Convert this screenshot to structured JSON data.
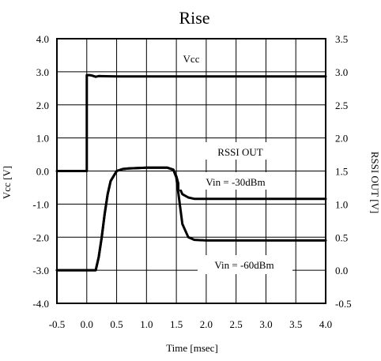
{
  "chart_data": {
    "type": "line",
    "title": "Rise",
    "xlabel": "Time [msec]",
    "ylabel_left": "Vcc [V]",
    "ylabel_right": "RSSI OUT [V]",
    "xlim": [
      -0.5,
      4.0
    ],
    "ylim_left": [
      -4.0,
      4.0
    ],
    "ylim_right": [
      -0.5,
      3.5
    ],
    "x_ticks": [
      "-0.5",
      "0.0",
      "0.5",
      "1.0",
      "1.5",
      "2.0",
      "2.5",
      "3.0",
      "3.5",
      "4.0"
    ],
    "y_ticks_left": [
      "4.0",
      "3.0",
      "2.0",
      "1.0",
      "0.0",
      "-1.0",
      "-2.0",
      "-3.0",
      "-4.0"
    ],
    "y_ticks_right": [
      "3.5",
      "3.0",
      "2.5",
      "2.0",
      "1.5",
      "1.0",
      "0.5",
      "0.0",
      "-0.5"
    ],
    "grid": true,
    "series": [
      {
        "name": "Vcc",
        "axis": "left",
        "x": [
          -0.5,
          0.0,
          0.0,
          0.05,
          0.1,
          0.15,
          0.2,
          0.5,
          1.0,
          2.0,
          3.0,
          4.0
        ],
        "values": [
          0.0,
          0.0,
          2.9,
          2.9,
          2.88,
          2.85,
          2.87,
          2.86,
          2.86,
          2.86,
          2.86,
          2.86
        ]
      },
      {
        "name": "RSSI OUT, Vin = -30dBm",
        "axis": "right",
        "x": [
          -0.5,
          0.15,
          0.2,
          0.25,
          0.3,
          0.35,
          0.4,
          0.5,
          0.6,
          0.7,
          1.0,
          1.35,
          1.45,
          1.5,
          1.55,
          1.6,
          1.7,
          1.8,
          2.0,
          2.5,
          3.0,
          4.0
        ],
        "values": [
          0.0,
          0.0,
          0.2,
          0.5,
          0.85,
          1.15,
          1.35,
          1.5,
          1.53,
          1.54,
          1.55,
          1.55,
          1.52,
          1.42,
          1.25,
          1.15,
          1.1,
          1.08,
          1.08,
          1.08,
          1.08,
          1.08
        ]
      },
      {
        "name": "RSSI OUT, Vin = -60dBm",
        "axis": "right",
        "x": [
          -0.5,
          0.15,
          0.2,
          0.25,
          0.3,
          0.35,
          0.4,
          0.5,
          0.6,
          0.7,
          1.0,
          1.35,
          1.45,
          1.5,
          1.55,
          1.6,
          1.7,
          1.8,
          2.0,
          2.5,
          3.0,
          4.0
        ],
        "values": [
          0.0,
          0.0,
          0.2,
          0.5,
          0.85,
          1.15,
          1.35,
          1.5,
          1.53,
          1.54,
          1.55,
          1.55,
          1.52,
          1.4,
          1.05,
          0.7,
          0.5,
          0.46,
          0.45,
          0.45,
          0.45,
          0.45
        ]
      }
    ],
    "annotations": [
      "Vcc",
      "RSSI OUT",
      "Vin = -30dBm",
      "Vin = -60dBm"
    ],
    "colors": {
      "line": "#000000",
      "grid": "#000000",
      "background": "#ffffff"
    }
  }
}
